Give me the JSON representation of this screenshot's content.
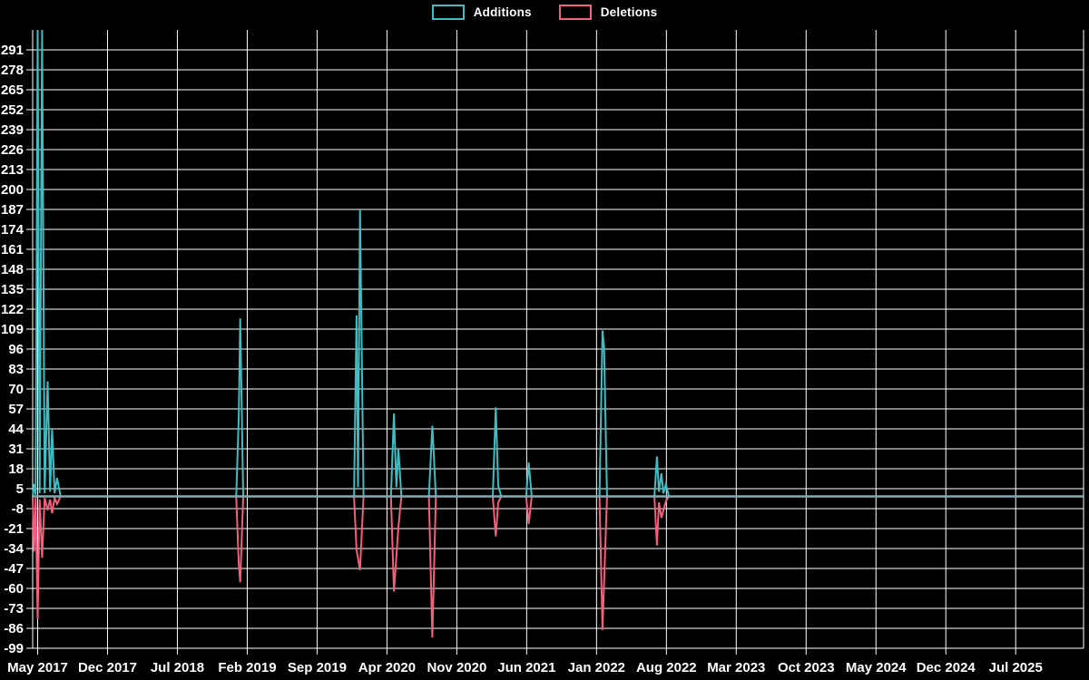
{
  "legend": [
    {
      "label": "Additions"
    },
    {
      "label": "Deletions"
    }
  ],
  "chart_data": {
    "type": "line",
    "title": "",
    "xlabel": "",
    "ylabel": "",
    "background": "#000000",
    "grid_color": "#ffffff",
    "text_color": "#ffffff",
    "zero_line_color": "#85aab1",
    "x_range": [
      -0.5,
      104.8
    ],
    "y_range": [
      -99,
      304
    ],
    "x_tick_months": [
      0,
      7,
      14,
      21,
      28,
      35,
      42,
      49,
      56,
      63,
      70,
      77,
      84,
      91,
      98
    ],
    "x_tick_labels": [
      "May 2017",
      "Dec 2017",
      "Jul 2018",
      "Feb 2019",
      "Sep 2019",
      "Apr 2020",
      "Nov 2020",
      "Jun 2021",
      "Jan 2022",
      "Aug 2022",
      "Mar 2023",
      "Oct 2023",
      "May 2024",
      "Dec 2024",
      "Jul 2025"
    ],
    "y_ticks": [
      -99,
      -86,
      -73,
      -60,
      -47,
      -34,
      -21,
      -8,
      5,
      18,
      31,
      44,
      57,
      70,
      83,
      96,
      109,
      122,
      135,
      148,
      161,
      174,
      187,
      200,
      213,
      226,
      239,
      252,
      265,
      278,
      291
    ],
    "series": [
      {
        "name": "Additions",
        "color": "#3fbdc2",
        "points": [
          [
            -0.5,
            0
          ],
          [
            -0.35,
            8
          ],
          [
            -0.2,
            1
          ],
          [
            0.0,
            304
          ],
          [
            0.2,
            2
          ],
          [
            0.45,
            304
          ],
          [
            0.7,
            2
          ],
          [
            1.0,
            75
          ],
          [
            1.25,
            3
          ],
          [
            1.45,
            44
          ],
          [
            1.7,
            2
          ],
          [
            1.95,
            12
          ],
          [
            2.3,
            0
          ],
          [
            19.9,
            0
          ],
          [
            20.15,
            52
          ],
          [
            20.3,
            116
          ],
          [
            20.6,
            0
          ],
          [
            31.7,
            0
          ],
          [
            31.95,
            118
          ],
          [
            32.1,
            6
          ],
          [
            32.3,
            187
          ],
          [
            32.65,
            0
          ],
          [
            35.4,
            0
          ],
          [
            35.7,
            54
          ],
          [
            35.95,
            6
          ],
          [
            36.15,
            31
          ],
          [
            36.45,
            0
          ],
          [
            39.2,
            0
          ],
          [
            39.55,
            46
          ],
          [
            39.9,
            0
          ],
          [
            45.6,
            0
          ],
          [
            45.9,
            58
          ],
          [
            46.15,
            7
          ],
          [
            46.45,
            0
          ],
          [
            48.95,
            0
          ],
          [
            49.2,
            22
          ],
          [
            49.5,
            0
          ],
          [
            56.3,
            0
          ],
          [
            56.6,
            108
          ],
          [
            56.75,
            98
          ],
          [
            57.05,
            0
          ],
          [
            61.8,
            0
          ],
          [
            62.05,
            26
          ],
          [
            62.25,
            3
          ],
          [
            62.5,
            15
          ],
          [
            62.7,
            2
          ],
          [
            62.95,
            8
          ],
          [
            63.25,
            0
          ],
          [
            104.8,
            0
          ]
        ]
      },
      {
        "name": "Deletions",
        "color": "#f2607c",
        "points": [
          [
            -0.5,
            0
          ],
          [
            -0.35,
            -36
          ],
          [
            -0.2,
            -1
          ],
          [
            0.0,
            -80
          ],
          [
            0.2,
            -2
          ],
          [
            0.45,
            -40
          ],
          [
            0.7,
            -1
          ],
          [
            1.0,
            -9
          ],
          [
            1.25,
            -2
          ],
          [
            1.45,
            -11
          ],
          [
            1.7,
            -1
          ],
          [
            1.95,
            -5
          ],
          [
            2.3,
            0
          ],
          [
            19.9,
            0
          ],
          [
            20.15,
            -44
          ],
          [
            20.3,
            -56
          ],
          [
            20.6,
            0
          ],
          [
            31.7,
            0
          ],
          [
            31.95,
            -35
          ],
          [
            32.3,
            -48
          ],
          [
            32.65,
            0
          ],
          [
            35.4,
            0
          ],
          [
            35.7,
            -62
          ],
          [
            36.15,
            -20
          ],
          [
            36.45,
            0
          ],
          [
            39.2,
            0
          ],
          [
            39.55,
            -92
          ],
          [
            39.9,
            0
          ],
          [
            45.6,
            0
          ],
          [
            45.9,
            -26
          ],
          [
            46.15,
            -4
          ],
          [
            46.45,
            0
          ],
          [
            48.95,
            0
          ],
          [
            49.2,
            -18
          ],
          [
            49.5,
            0
          ],
          [
            56.3,
            0
          ],
          [
            56.6,
            -87
          ],
          [
            57.05,
            0
          ],
          [
            61.8,
            0
          ],
          [
            62.05,
            -32
          ],
          [
            62.25,
            -4
          ],
          [
            62.5,
            -14
          ],
          [
            62.95,
            -3
          ],
          [
            63.25,
            0
          ],
          [
            104.8,
            0
          ]
        ]
      }
    ],
    "legend_position": "top-center",
    "grid": true
  }
}
